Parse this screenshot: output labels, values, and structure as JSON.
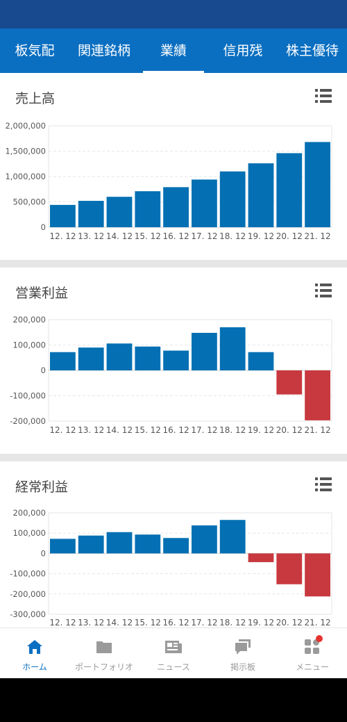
{
  "tabs": [
    {
      "label": "板気配",
      "active": false
    },
    {
      "label": "関連銘柄",
      "active": false
    },
    {
      "label": "業績",
      "active": true
    },
    {
      "label": "信用残",
      "active": false
    },
    {
      "label": "株主優待",
      "active": false
    }
  ],
  "colors": {
    "positive": "#0470b3",
    "negative": "#c8393f",
    "accent": "#0b6fc1"
  },
  "charts": [
    {
      "title": "売上高",
      "icon": "list-icon"
    },
    {
      "title": "営業利益",
      "icon": "list-icon"
    },
    {
      "title": "経常利益",
      "icon": "list-icon"
    }
  ],
  "chart_data": [
    {
      "type": "bar",
      "title": "売上高",
      "categories": [
        "12. 12",
        "13. 12",
        "14. 12",
        "15. 12",
        "16. 12",
        "17. 12",
        "18. 12",
        "19. 12",
        "20. 12",
        "21. 12"
      ],
      "values": [
        440000,
        520000,
        600000,
        710000,
        790000,
        940000,
        1100000,
        1260000,
        1460000,
        1680000
      ],
      "yticks": [
        "2,000,000",
        "1,500,000",
        "1,000,000",
        "500,000",
        "0"
      ],
      "ylim": [
        0,
        2000000
      ],
      "grid": true
    },
    {
      "type": "bar",
      "title": "営業利益",
      "categories": [
        "12. 12",
        "13. 12",
        "14. 12",
        "15. 12",
        "16. 12",
        "17. 12",
        "18. 12",
        "19. 12",
        "20. 12",
        "21. 12"
      ],
      "values": [
        72000,
        90000,
        106000,
        94000,
        78000,
        148000,
        170000,
        72000,
        -95000,
        -197000
      ],
      "yticks": [
        "200,000",
        "100,000",
        "0",
        "-100,000",
        "-200,000"
      ],
      "ylim": [
        -200000,
        200000
      ],
      "grid": true
    },
    {
      "type": "bar",
      "title": "経常利益",
      "categories": [
        "12. 12",
        "13. 12",
        "14. 12",
        "15. 12",
        "16. 12",
        "17. 12",
        "18. 12",
        "19. 12",
        "20. 12",
        "21. 12"
      ],
      "values": [
        72000,
        88000,
        105000,
        93000,
        76000,
        138000,
        165000,
        -43000,
        -152000,
        -212000
      ],
      "yticks": [
        "200,000",
        "100,000",
        "0",
        "-100,000",
        "-200,000",
        "-300,000"
      ],
      "ylim": [
        -300000,
        200000
      ],
      "grid": true
    }
  ],
  "bottom_nav": [
    {
      "label": "ホーム",
      "icon": "home-icon",
      "active": true
    },
    {
      "label": "ポートフォリオ",
      "icon": "folder-icon",
      "active": false
    },
    {
      "label": "ニュース",
      "icon": "news-icon",
      "active": false
    },
    {
      "label": "掲示板",
      "icon": "chat-icon",
      "active": false
    },
    {
      "label": "メニュー",
      "icon": "menu-grid-icon",
      "active": false,
      "badge": true
    }
  ]
}
